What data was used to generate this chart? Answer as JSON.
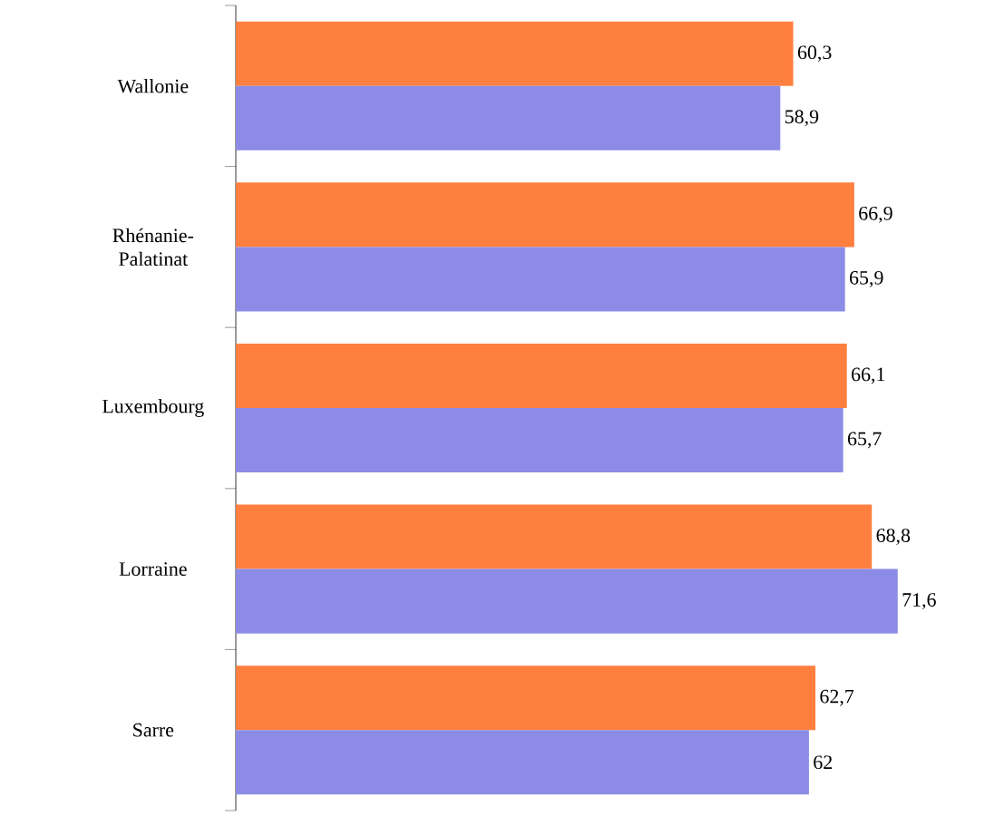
{
  "chart_data": {
    "type": "bar",
    "orientation": "horizontal",
    "categories": [
      "Wallonie",
      "Rhénanie-Palatinat",
      "Luxembourg",
      "Lorraine",
      "Sarre"
    ],
    "series": [
      {
        "color": "#ff7f3f",
        "values": [
          60.3,
          66.9,
          66.1,
          68.8,
          62.7
        ],
        "value_labels": [
          "60,3",
          "66,9",
          "66,1",
          "68,8",
          "62,7"
        ]
      },
      {
        "color": "#8c8ce6",
        "values": [
          58.9,
          65.9,
          65.7,
          71.6,
          62
        ],
        "value_labels": [
          "58,9",
          "65,9",
          "65,7",
          "71,6",
          "62"
        ]
      }
    ]
  }
}
